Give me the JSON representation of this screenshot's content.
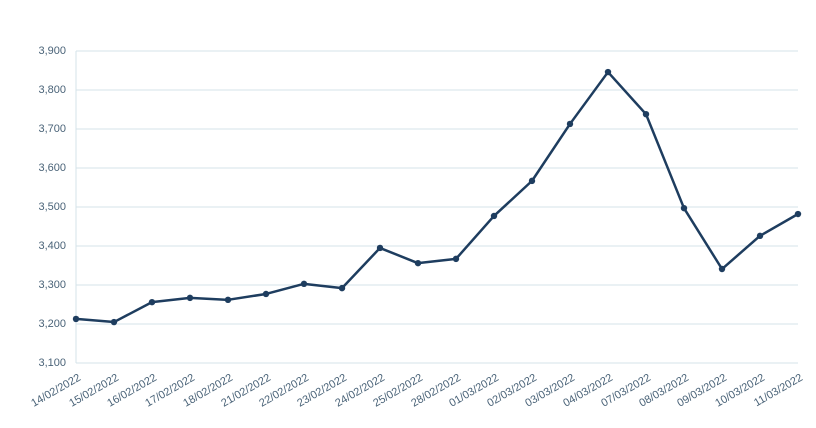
{
  "chart_data": {
    "type": "line",
    "x": [
      "14/02/2022",
      "15/02/2022",
      "16/02/2022",
      "17/02/2022",
      "18/02/2022",
      "21/02/2022",
      "22/02/2022",
      "23/02/2022",
      "24/02/2022",
      "25/02/2022",
      "28/02/2022",
      "01/03/2022",
      "02/03/2022",
      "03/03/2022",
      "04/03/2022",
      "07/03/2022",
      "08/03/2022",
      "09/03/2022",
      "10/03/2022",
      "11/03/2022"
    ],
    "values": [
      3213,
      3205,
      3256,
      3267,
      3262,
      3277,
      3303,
      3292,
      3395,
      3356,
      3367,
      3477,
      3567,
      3713,
      3846,
      3738,
      3497,
      3341,
      3426,
      3482
    ],
    "color": "#1e3d5f",
    "ylim": [
      3100,
      3900
    ],
    "yticks": [
      {
        "value": 3100,
        "label": "3,100"
      },
      {
        "value": 3200,
        "label": "3,200"
      },
      {
        "value": 3300,
        "label": "3,300"
      },
      {
        "value": 3400,
        "label": "3,400"
      },
      {
        "value": 3500,
        "label": "3,500"
      },
      {
        "value": 3600,
        "label": "3,600"
      },
      {
        "value": 3700,
        "label": "3,700"
      },
      {
        "value": 3800,
        "label": "3,800"
      },
      {
        "value": 3900,
        "label": "3,900"
      }
    ],
    "grid": true
  }
}
